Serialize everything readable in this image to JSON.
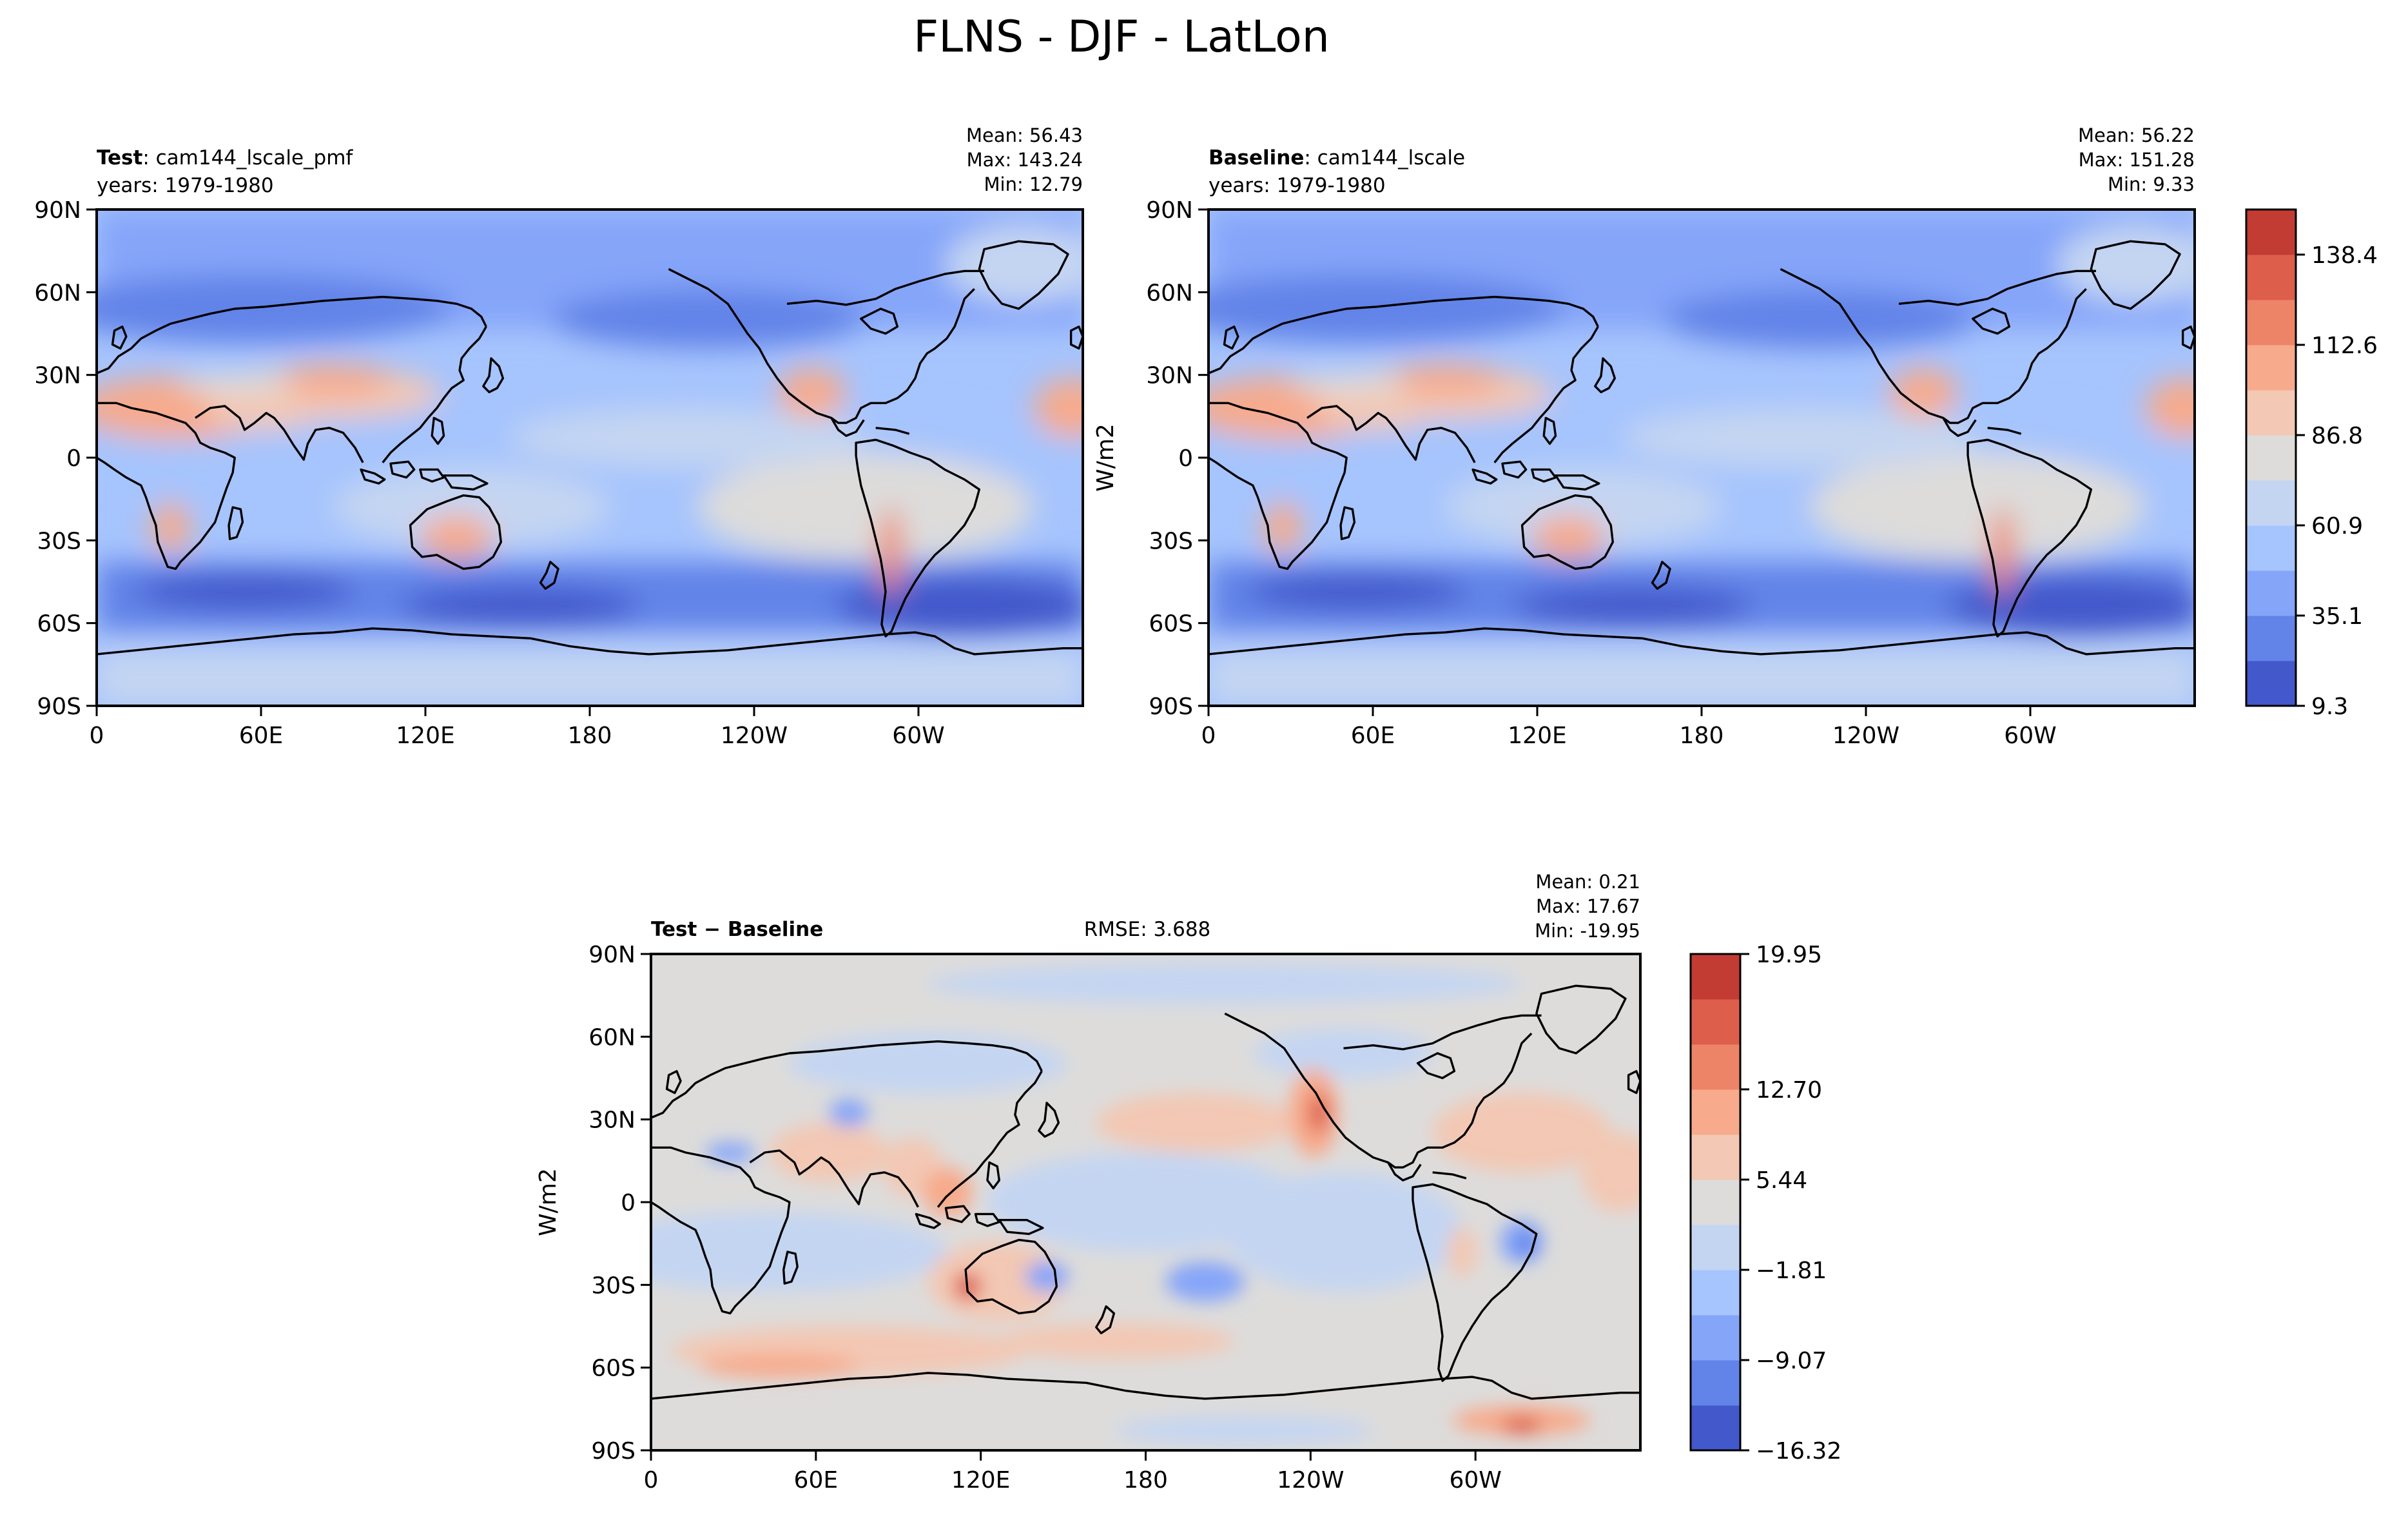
{
  "figure": {
    "title": "FLNS - DJF - LatLon"
  },
  "chart_data": [
    {
      "id": "test",
      "type": "heatmap",
      "title_bold": "Test",
      "title_rest": ": cam144_lscale_pmf",
      "subtitle": "years: 1979-1980",
      "stats": [
        "Mean: 56.43",
        "Max: 143.24",
        "Min: 12.79"
      ],
      "xticks": [
        "0",
        "60E",
        "120E",
        "180",
        "120W",
        "60W"
      ],
      "yticks": [
        "90N",
        "60N",
        "30N",
        "0",
        "30S",
        "60S",
        "90S"
      ],
      "ylabel": "",
      "xlim": [
        0,
        360
      ],
      "ylim": [
        -90,
        90
      ],
      "colorbar": null
    },
    {
      "id": "baseline",
      "type": "heatmap",
      "title_bold": "Baseline",
      "title_rest": ": cam144_lscale",
      "subtitle": "years: 1979-1980",
      "stats": [
        "Mean: 56.22",
        "Max: 151.28",
        "Min:  9.33"
      ],
      "xticks": [
        "0",
        "60E",
        "120E",
        "180",
        "120W",
        "60W"
      ],
      "yticks": [
        "90N",
        "60N",
        "30N",
        "0",
        "30S",
        "60S",
        "90S"
      ],
      "ylabel": "W/m2",
      "xlim": [
        0,
        360
      ],
      "ylim": [
        -90,
        90
      ],
      "colorbar": {
        "ticks": [
          "138.4",
          "112.6",
          "86.8",
          "60.9",
          "35.1",
          "9.3"
        ],
        "colors": [
          "#4358cb",
          "#6283e8",
          "#85a5f9",
          "#a6c4fd",
          "#c4d5f2",
          "#dddcdb",
          "#f3c8b4",
          "#f7aa8c",
          "#ed8467",
          "#dc5e4b",
          "#c23c33"
        ]
      }
    },
    {
      "id": "diff",
      "type": "heatmap",
      "title_bold": "Test − Baseline",
      "title_rest": "",
      "rmse": "RMSE: 3.688",
      "stats": [
        "Mean:  0.21",
        "Max: 17.67",
        "Min: -19.95"
      ],
      "xticks": [
        "0",
        "60E",
        "120E",
        "180",
        "120W",
        "60W"
      ],
      "yticks": [
        "90N",
        "60N",
        "30N",
        "0",
        "30S",
        "60S",
        "90S"
      ],
      "ylabel": "W/m2",
      "xlim": [
        0,
        360
      ],
      "ylim": [
        -90,
        90
      ],
      "colorbar": {
        "ticks": [
          "19.95",
          "12.70",
          "5.44",
          "−1.81",
          "−9.07",
          "−16.32"
        ],
        "colors": [
          "#4358cb",
          "#6283e8",
          "#85a5f9",
          "#a6c4fd",
          "#c4d5f2",
          "#dddcdb",
          "#f3c8b4",
          "#f7aa8c",
          "#ed8467",
          "#dc5e4b",
          "#c23c33"
        ]
      }
    }
  ]
}
